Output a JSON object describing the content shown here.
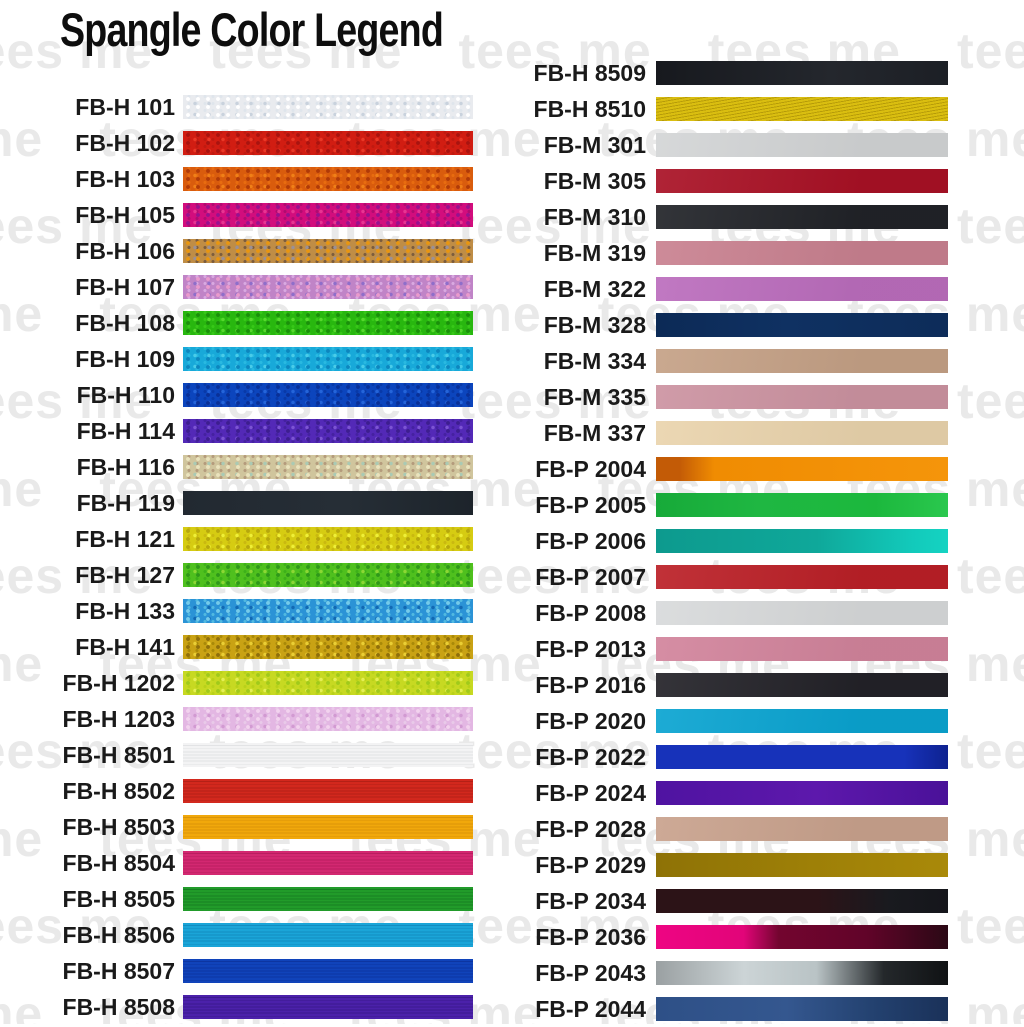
{
  "watermark": {
    "text": "tees me",
    "color": "#e9e9e9"
  },
  "chart_data": {
    "type": "table",
    "title": "Spangle Color Legend",
    "legend_note": "color code labels with swatch strips, two columns",
    "columns": [
      {
        "name": "left",
        "rows": [
          {
            "label": "FB-H 101",
            "style": "speckle",
            "base": "#e9ebef",
            "accents": [
              "#ffffff",
              "#c9d2dd",
              "#dfe5ec"
            ]
          },
          {
            "label": "FB-H 102",
            "style": "speckle",
            "base": "#d11d12",
            "accents": [
              "#a81410",
              "#e93826",
              "#c01a10"
            ]
          },
          {
            "label": "FB-H 103",
            "style": "speckle",
            "base": "#d95c0d",
            "accents": [
              "#b03a08",
              "#f08018",
              "#e86c10"
            ]
          },
          {
            "label": "FB-H 105",
            "style": "speckle",
            "base": "#d20d7d",
            "accents": [
              "#97128f",
              "#e73492",
              "#b00b70"
            ]
          },
          {
            "label": "FB-H 106",
            "style": "speckle",
            "base": "#bf8d46",
            "accents": [
              "#e9960f",
              "#9b9095",
              "#7c5c3c"
            ]
          },
          {
            "label": "FB-H 107",
            "style": "speckle",
            "base": "#c084c7",
            "accents": [
              "#e99acc",
              "#8f6eca",
              "#d9a9e1"
            ]
          },
          {
            "label": "FB-H 108",
            "style": "speckle",
            "base": "#28b70f",
            "accents": [
              "#1b8f0b",
              "#56d82d",
              "#37c818"
            ]
          },
          {
            "label": "FB-H 109",
            "style": "speckle",
            "base": "#18a9d9",
            "accents": [
              "#0d86be",
              "#49cce9",
              "#29b9e1"
            ]
          },
          {
            "label": "FB-H 110",
            "style": "speckle",
            "base": "#0c45bd",
            "accents": [
              "#0a3097",
              "#2464d9",
              "#0839a9"
            ]
          },
          {
            "label": "FB-H 114",
            "style": "speckle",
            "base": "#5329b7",
            "accents": [
              "#3d1e8f",
              "#7c54d3",
              "#4521a1"
            ]
          },
          {
            "label": "FB-H 116",
            "style": "speckle",
            "base": "#d0c59d",
            "accents": [
              "#eae3bd",
              "#aacab4",
              "#b49b7c"
            ]
          },
          {
            "label": "FB-H 119",
            "style": "gradient",
            "stops": [
              "#222931 0%",
              "#262e36 55%",
              "#1d242b 100%"
            ]
          },
          {
            "label": "FB-H 121",
            "style": "speckle",
            "base": "#d6cc12",
            "accents": [
              "#b6a70d",
              "#efef37",
              "#c9b910"
            ]
          },
          {
            "label": "FB-H 127",
            "style": "speckle",
            "base": "#4fc01e",
            "accents": [
              "#2f981a",
              "#8bd734",
              "#3db119"
            ]
          },
          {
            "label": "FB-H 133",
            "style": "speckle",
            "base": "#2b93d6",
            "accents": [
              "#75cbea",
              "#1269b3",
              "#51b9e1"
            ]
          },
          {
            "label": "FB-H 141",
            "style": "speckle",
            "base": "#c9a214",
            "accents": [
              "#8f6f0b",
              "#eace34",
              "#a98908"
            ]
          },
          {
            "label": "FB-H 1202",
            "style": "speckle",
            "base": "#c7d922",
            "accents": [
              "#a0ca1b",
              "#e4ef55",
              "#b9d119"
            ]
          },
          {
            "label": "FB-H 1203",
            "style": "speckle",
            "base": "#e3b7e3",
            "accents": [
              "#f2d3ee",
              "#d29ad2",
              "#e9c9e9"
            ]
          },
          {
            "label": "FB-H 8501",
            "style": "stripe",
            "base": "#f3f3f4",
            "stripe": "#e2e3e5"
          },
          {
            "label": "FB-H 8502",
            "style": "stripe",
            "base": "#d2281d",
            "stripe": "#b42016"
          },
          {
            "label": "FB-H 8503",
            "style": "stripe",
            "base": "#f1a80b",
            "stripe": "#da9509"
          },
          {
            "label": "FB-H 8504",
            "style": "stripe",
            "base": "#d32871",
            "stripe": "#b91e5f"
          },
          {
            "label": "FB-H 8505",
            "style": "stripe",
            "base": "#219b2a",
            "stripe": "#177f21"
          },
          {
            "label": "FB-H 8506",
            "style": "stripe",
            "base": "#1ba5d8",
            "stripe": "#138dc1"
          },
          {
            "label": "FB-H 8507",
            "style": "stripe",
            "base": "#1043ba",
            "stripe": "#0c35a1"
          },
          {
            "label": "FB-H 8508",
            "style": "stripe",
            "base": "#4b21aa",
            "stripe": "#3b198d"
          }
        ]
      },
      {
        "name": "right",
        "rows": [
          {
            "label": "FB-H 8509",
            "style": "gradient",
            "stops": [
              "#17191e 0%",
              "#24272d 60%",
              "#1c1f25 100%"
            ]
          },
          {
            "label": "FB-H 8510",
            "style": "stripe",
            "base": "#dabe10",
            "stripe": "#b69b08",
            "angle": 170
          },
          {
            "label": "FB-M 301",
            "style": "flat",
            "base": "#d3d5d6"
          },
          {
            "label": "FB-M 305",
            "style": "flat",
            "base": "#a91125"
          },
          {
            "label": "FB-M 310",
            "style": "flat",
            "base": "#212328"
          },
          {
            "label": "FB-M 319",
            "style": "flat",
            "base": "#c98190"
          },
          {
            "label": "FB-M 322",
            "style": "flat",
            "base": "#bb6dbd"
          },
          {
            "label": "FB-M 328",
            "style": "gradient",
            "stops": [
              "#0c2a56 0%",
              "#0f3162 45%",
              "#0d2c59 100%"
            ]
          },
          {
            "label": "FB-M 334",
            "style": "flat",
            "base": "#c5a186"
          },
          {
            "label": "FB-M 335",
            "style": "flat",
            "base": "#cc93a1"
          },
          {
            "label": "FB-M 337",
            "style": "flat",
            "base": "#ead4ad"
          },
          {
            "label": "FB-P 2004",
            "style": "gradient",
            "stops": [
              "#c35b06 0%",
              "#c35b06 8%",
              "#f08c02 20%",
              "#f5950a 100%"
            ]
          },
          {
            "label": "FB-P 2005",
            "style": "gradient",
            "stops": [
              "#17aa39 0%",
              "#1fb742 35%",
              "#1cb83d 75%",
              "#2ac84e 100%"
            ]
          },
          {
            "label": "FB-P 2006",
            "style": "gradient",
            "stops": [
              "#0d9a8e 0%",
              "#0fa89a 55%",
              "#12cabb 88%",
              "#15d3c2 100%"
            ]
          },
          {
            "label": "FB-P 2007",
            "style": "flat",
            "base": "#bb2027"
          },
          {
            "label": "FB-P 2008",
            "style": "flat",
            "base": "#d8dadb"
          },
          {
            "label": "FB-P 2013",
            "style": "flat",
            "base": "#d2849c"
          },
          {
            "label": "FB-P 2016",
            "style": "flat",
            "base": "#232228"
          },
          {
            "label": "FB-P 2020",
            "style": "flat",
            "base": "#0aa4d1"
          },
          {
            "label": "FB-P 2022",
            "style": "gradient",
            "stops": [
              "#1732ba 0%",
              "#1732ba 85%",
              "#0e2290 100%"
            ]
          },
          {
            "label": "FB-P 2024",
            "style": "gradient",
            "stops": [
              "#4f13a1 0%",
              "#5d18ac 55%",
              "#4a1199 100%"
            ]
          },
          {
            "label": "FB-P 2028",
            "style": "flat",
            "base": "#c9a28d"
          },
          {
            "label": "FB-P 2029",
            "style": "gradient",
            "stops": [
              "#8e7206 0%",
              "#9d7f07 50%",
              "#a98909 100%"
            ]
          },
          {
            "label": "FB-P 2034",
            "style": "gradient",
            "stops": [
              "#2c1317 0%",
              "#2c1317 55%",
              "#191a1f 80%",
              "#15161b 100%"
            ]
          },
          {
            "label": "FB-P 2036",
            "style": "gradient",
            "stops": [
              "#ee0583 0%",
              "#e20579 30%",
              "#73052f 42%",
              "#610429 72%",
              "#2b0815 100%"
            ]
          },
          {
            "label": "FB-P 2043",
            "style": "gradient",
            "stops": [
              "#9aa0a2 0%",
              "#ccd4d6 30%",
              "#b9c3c5 55%",
              "#24282b 78%",
              "#101214 100%"
            ]
          },
          {
            "label": "FB-P 2044",
            "style": "gradient",
            "stops": [
              "#2e5087 0%",
              "#34578f 45%",
              "#23416f 75%",
              "#1a3159 100%"
            ]
          }
        ]
      }
    ]
  }
}
